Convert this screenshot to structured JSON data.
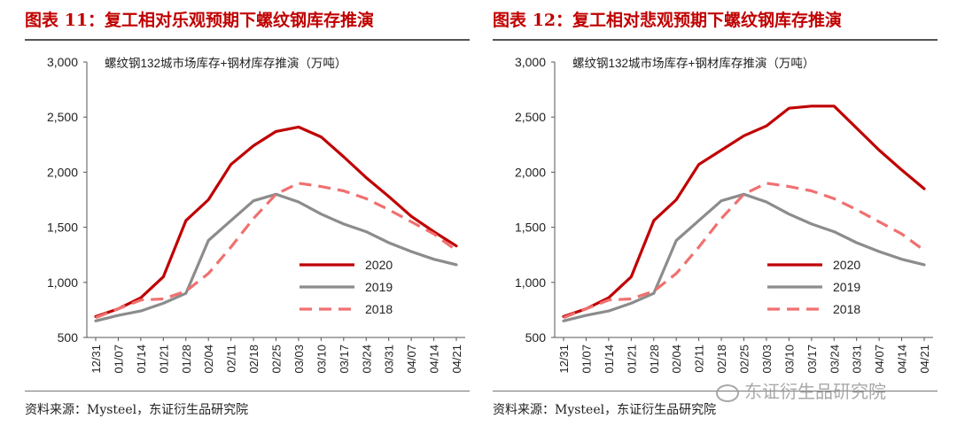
{
  "chart_data": [
    {
      "type": "line",
      "title": "图表 11：复工相对乐观预期下螺纹钢库存推演",
      "subtitle": "螺纹钢132城市场库存+钢材库存推演（万吨）",
      "source": "资料来源：Mysteel，东证衍生品研究院",
      "ylim": [
        500,
        3000
      ],
      "yticks": [
        "500",
        "1,000",
        "1,500",
        "2,000",
        "2,500",
        "3,000"
      ],
      "xticks": [
        "12/31",
        "01/07",
        "01/14",
        "01/21",
        "01/28",
        "02/04",
        "02/11",
        "02/18",
        "02/25",
        "03/03",
        "03/10",
        "03/17",
        "03/24",
        "03/31",
        "04/07",
        "04/14",
        "04/21"
      ],
      "legend_position": "lower-right",
      "series": [
        {
          "name": "2020",
          "color": "#c00000",
          "dash": "none",
          "values": [
            690,
            760,
            860,
            1050,
            1560,
            1750,
            2070,
            2240,
            2370,
            2410,
            2320,
            2140,
            1950,
            1780,
            1600,
            1460,
            1330
          ]
        },
        {
          "name": "2019",
          "color": "#8c8c8c",
          "dash": "none",
          "values": [
            650,
            700,
            740,
            810,
            900,
            1380,
            1560,
            1740,
            1800,
            1730,
            1620,
            1530,
            1460,
            1360,
            1280,
            1210,
            1160
          ]
        },
        {
          "name": "2018",
          "color": "#f07070",
          "dash": "14,8",
          "values": [
            680,
            760,
            840,
            850,
            920,
            1080,
            1320,
            1580,
            1800,
            1900,
            1870,
            1830,
            1760,
            1660,
            1550,
            1440,
            1290
          ]
        }
      ]
    },
    {
      "type": "line",
      "title": "图表 12：复工相对悲观预期下螺纹钢库存推演",
      "subtitle": "螺纹钢132城市场库存+钢材库存推演（万吨）",
      "source": "资料来源：Mysteel，东证衍生品研究院",
      "ylim": [
        500,
        3000
      ],
      "yticks": [
        "500",
        "1,000",
        "1,500",
        "2,000",
        "2,500",
        "3,000"
      ],
      "xticks": [
        "12/31",
        "01/07",
        "01/14",
        "01/21",
        "01/28",
        "02/04",
        "02/11",
        "02/18",
        "02/25",
        "03/03",
        "03/10",
        "03/17",
        "03/24",
        "03/31",
        "04/07",
        "04/14",
        "04/21"
      ],
      "legend_position": "lower-right",
      "series": [
        {
          "name": "2020",
          "color": "#c00000",
          "dash": "none",
          "values": [
            690,
            760,
            860,
            1050,
            1560,
            1750,
            2070,
            2200,
            2330,
            2420,
            2580,
            2600,
            2600,
            2400,
            2200,
            2020,
            1850
          ]
        },
        {
          "name": "2019",
          "color": "#8c8c8c",
          "dash": "none",
          "values": [
            650,
            700,
            740,
            810,
            900,
            1380,
            1560,
            1740,
            1800,
            1730,
            1620,
            1530,
            1460,
            1360,
            1280,
            1210,
            1160
          ]
        },
        {
          "name": "2018",
          "color": "#f07070",
          "dash": "14,8",
          "values": [
            680,
            760,
            840,
            850,
            920,
            1080,
            1320,
            1580,
            1800,
            1900,
            1870,
            1830,
            1760,
            1660,
            1550,
            1440,
            1290
          ]
        }
      ]
    }
  ],
  "watermark": "东证衍生品研究院"
}
